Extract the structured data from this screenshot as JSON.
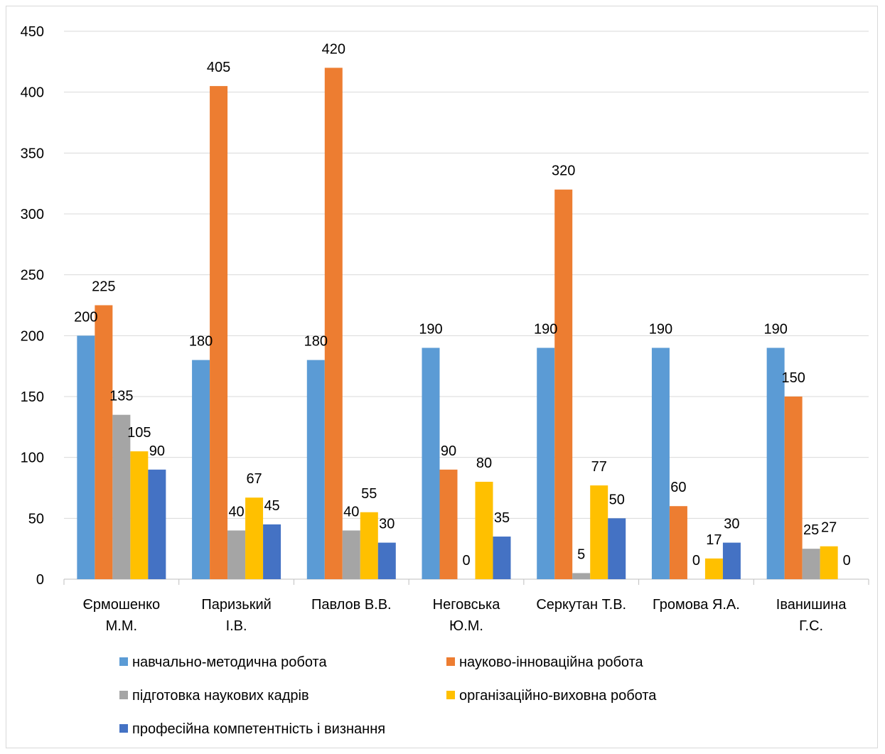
{
  "chart_data": {
    "type": "bar",
    "categories": [
      [
        "Єрмошенко",
        "М.М."
      ],
      [
        "Паризький",
        "І.В."
      ],
      [
        "Павлов В.В."
      ],
      [
        "Неговська",
        "Ю.М."
      ],
      [
        "Серкутан Т.В."
      ],
      [
        "Громова Я.А."
      ],
      [
        "Іванишина",
        "Г.С."
      ]
    ],
    "series": [
      {
        "name": "навчально-методична робота",
        "color": "#5b9bd5",
        "values": [
          200,
          180,
          180,
          190,
          190,
          190,
          190
        ]
      },
      {
        "name": "науково-інноваційна робота",
        "color": "#ed7d31",
        "values": [
          225,
          405,
          420,
          90,
          320,
          60,
          150
        ]
      },
      {
        "name": "підготовка наукових кадрів",
        "color": "#a5a5a5",
        "values": [
          135,
          40,
          40,
          0,
          5,
          0,
          25
        ]
      },
      {
        "name": "організаційно-виховна робота",
        "color": "#ffc000",
        "values": [
          105,
          67,
          55,
          80,
          77,
          17,
          27
        ]
      },
      {
        "name": "професійна компетентність і визнання",
        "color": "#4472c4",
        "values": [
          90,
          45,
          30,
          35,
          50,
          30,
          0
        ]
      }
    ],
    "ylim": [
      0,
      450
    ],
    "yticks": [
      0,
      50,
      100,
      150,
      200,
      250,
      300,
      350,
      400,
      450
    ],
    "grid": true,
    "legend_position": "bottom",
    "data_labels": true
  }
}
